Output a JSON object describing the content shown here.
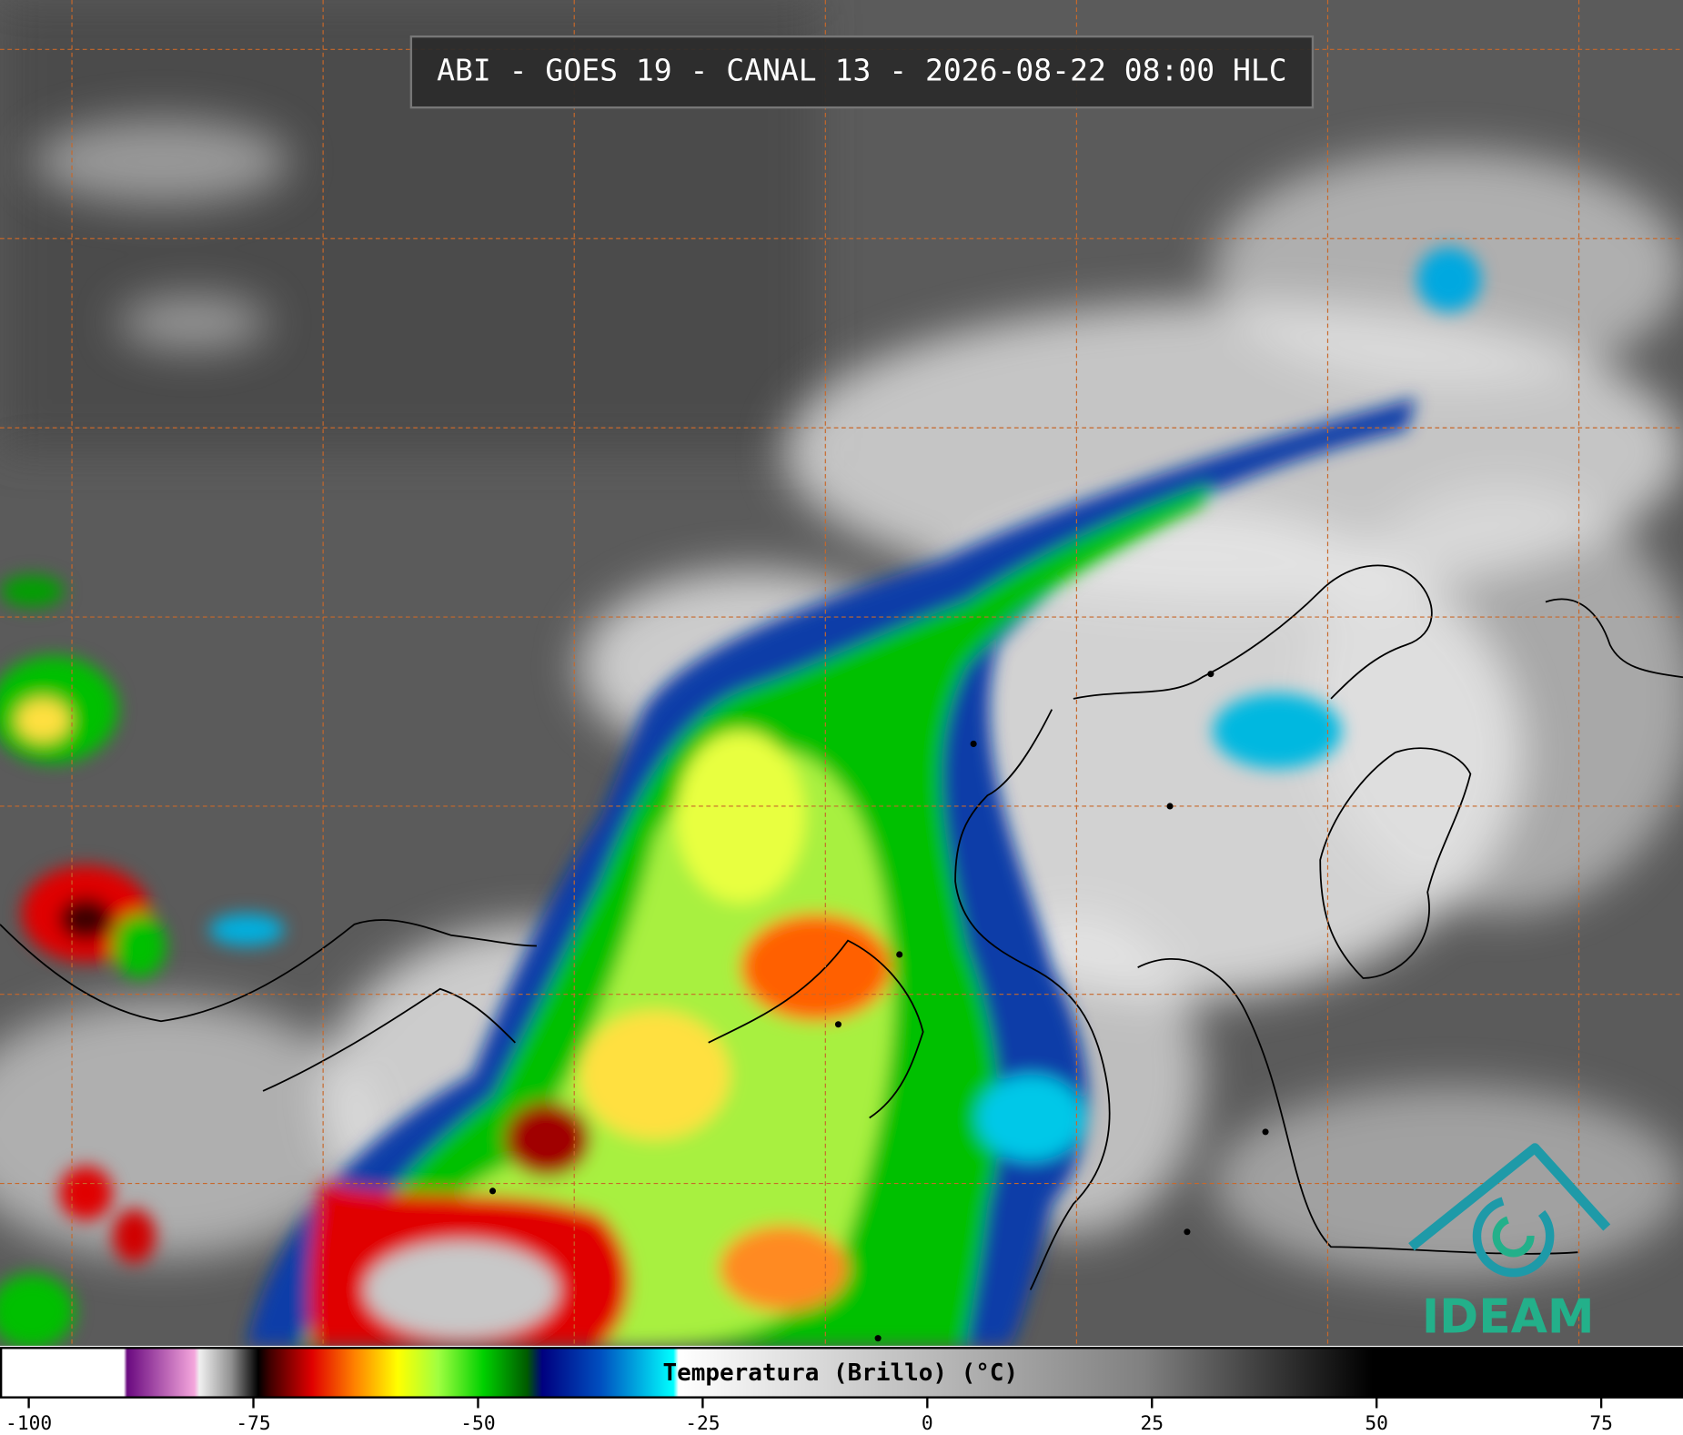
{
  "chart_data": {
    "type": "satellite-image",
    "title": "ABI - GOES 19 - CANAL 13 - 2026-08-22 08:00 HLC",
    "colorbar_label": "Temperatura (Brillo) (°C)",
    "xlim": [
      -103.2,
      84.1
    ],
    "xticks": [
      -100,
      -75,
      -50,
      -25,
      0,
      25,
      50,
      75
    ],
    "logo": "IDEAM"
  }
}
